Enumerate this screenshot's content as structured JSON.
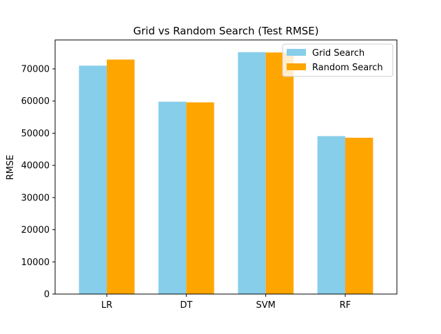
{
  "chart_data": {
    "type": "bar",
    "title": "Grid vs Random Search (Test RMSE)",
    "xlabel": "",
    "ylabel": "RMSE",
    "categories": [
      "LR",
      "DT",
      "SVM",
      "RF"
    ],
    "series": [
      {
        "name": "Grid Search",
        "color": "#87ceeb",
        "values": [
          71000,
          59800,
          75200,
          49100
        ]
      },
      {
        "name": "Random Search",
        "color": "#ffa500",
        "values": [
          72900,
          59600,
          75100,
          48600
        ]
      }
    ],
    "ylim": [
      0,
      79000
    ],
    "yticks": [
      0,
      10000,
      20000,
      30000,
      40000,
      50000,
      60000,
      70000
    ],
    "grid": false,
    "legend_position": "top-right"
  }
}
